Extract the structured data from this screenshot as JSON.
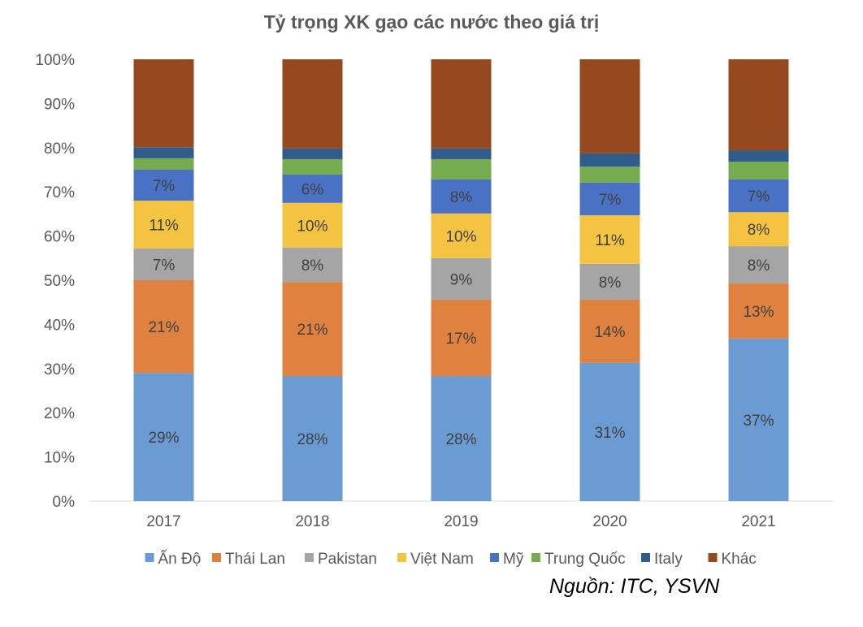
{
  "chart_data": {
    "type": "bar",
    "stacked": true,
    "percent": true,
    "title": "Tỷ trọng XK gạo các nước theo giá trị",
    "source": "Nguồn: ITC, YSVN",
    "xlabel": "",
    "ylabel": "",
    "ylim": [
      0,
      100
    ],
    "yticks": [
      "0%",
      "10%",
      "20%",
      "30%",
      "40%",
      "50%",
      "60%",
      "70%",
      "80%",
      "90%",
      "100%"
    ],
    "categories": [
      "2017",
      "2018",
      "2019",
      "2020",
      "2021"
    ],
    "legend_position": "bottom",
    "series": [
      {
        "name": "Ấn Độ",
        "color": "#6a9bd2",
        "values": [
          29,
          28.3,
          28.3,
          31.3,
          36.8
        ],
        "labels": [
          "29%",
          "28%",
          "28%",
          "31%",
          "37%"
        ]
      },
      {
        "name": "Thái Lan",
        "color": "#e0823f",
        "values": [
          21,
          21.3,
          17.3,
          14.3,
          12.5
        ],
        "labels": [
          "21%",
          "21%",
          "17%",
          "14%",
          "13%"
        ]
      },
      {
        "name": "Pakistan",
        "color": "#a5a5a5",
        "values": [
          7.2,
          7.8,
          9.4,
          8.1,
          8.4
        ],
        "labels": [
          "7%",
          "8%",
          "9%",
          "8%",
          "8%"
        ]
      },
      {
        "name": "Việt Nam",
        "color": "#f5c342",
        "values": [
          10.8,
          10.1,
          10.1,
          11,
          7.7
        ],
        "labels": [
          "11%",
          "10%",
          "10%",
          "11%",
          "8%"
        ]
      },
      {
        "name": "Mỹ",
        "color": "#4a72c4",
        "values": [
          7,
          6.4,
          7.7,
          7.4,
          7.4
        ],
        "labels": [
          "7%",
          "6%",
          "8%",
          "7%",
          "7%"
        ]
      },
      {
        "name": "Trung Quốc",
        "color": "#76ab4f",
        "values": [
          2.6,
          3.5,
          4.6,
          3.6,
          4
        ]
      },
      {
        "name": "Italy",
        "color": "#2f5c8a",
        "values": [
          2.5,
          2.4,
          2.4,
          3,
          2.6
        ]
      },
      {
        "name": "Khác",
        "color": "#96491e",
        "values": [
          19.9,
          20.2,
          20.2,
          21.3,
          20.6
        ]
      }
    ]
  }
}
